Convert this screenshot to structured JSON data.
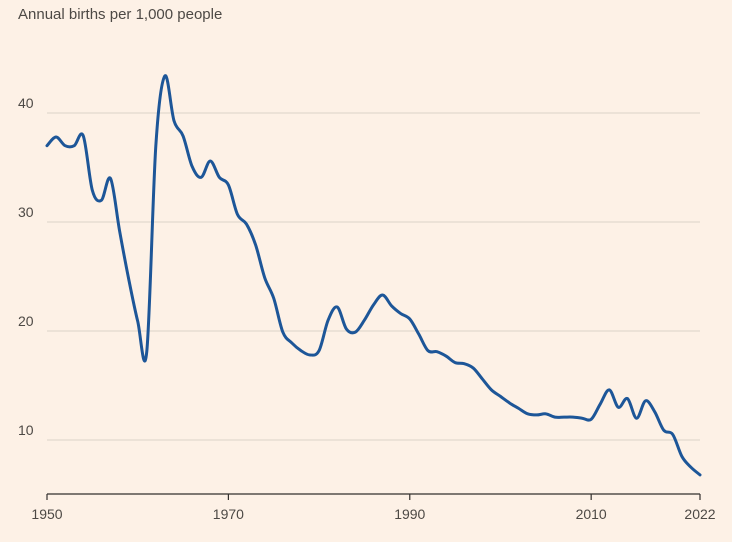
{
  "colors": {
    "background": "#fdf1e6",
    "line": "#1d5698",
    "grid": "#dcd2c8",
    "axis": "#33302e",
    "text": "#4d4945"
  },
  "chart_data": {
    "type": "line",
    "title": "",
    "subtitle": "Annual births per 1,000 people",
    "xlabel": "",
    "ylabel": "Annual births per 1,000 people",
    "xlim": [
      1950,
      2022
    ],
    "ylim": [
      5,
      45
    ],
    "grid": true,
    "yticks": [
      10,
      20,
      30,
      40
    ],
    "ytick_labels": [
      "10",
      "20",
      "30",
      "40"
    ],
    "xticks": [
      1950,
      1970,
      1990,
      2010,
      2022
    ],
    "xtick_labels": [
      "1950",
      "1970",
      "1990",
      "2010",
      "2022"
    ],
    "series": [
      {
        "name": "Annual births per 1,000 people",
        "x": [
          1950,
          1951,
          1952,
          1953,
          1954,
          1955,
          1956,
          1957,
          1958,
          1959,
          1960,
          1961,
          1962,
          1963,
          1964,
          1965,
          1966,
          1967,
          1968,
          1969,
          1970,
          1971,
          1972,
          1973,
          1974,
          1975,
          1976,
          1977,
          1978,
          1979,
          1980,
          1981,
          1982,
          1983,
          1984,
          1985,
          1986,
          1987,
          1988,
          1989,
          1990,
          1991,
          1992,
          1993,
          1994,
          1995,
          1996,
          1997,
          1998,
          1999,
          2000,
          2001,
          2002,
          2003,
          2004,
          2005,
          2006,
          2007,
          2008,
          2009,
          2010,
          2011,
          2012,
          2013,
          2014,
          2015,
          2016,
          2017,
          2018,
          2019,
          2020,
          2021,
          2022
        ],
        "values": [
          37.0,
          37.8,
          37.0,
          37.0,
          37.9,
          32.9,
          32.0,
          34.0,
          29.2,
          24.8,
          20.9,
          18.1,
          37.0,
          43.4,
          39.3,
          37.9,
          35.1,
          34.1,
          35.6,
          34.1,
          33.4,
          30.7,
          29.8,
          27.9,
          24.9,
          23.0,
          19.9,
          18.9,
          18.2,
          17.8,
          18.2,
          21.0,
          22.2,
          20.2,
          19.9,
          21.0,
          22.4,
          23.3,
          22.3,
          21.6,
          21.1,
          19.7,
          18.2,
          18.1,
          17.7,
          17.1,
          17.0,
          16.6,
          15.6,
          14.6,
          14.0,
          13.4,
          12.9,
          12.4,
          12.3,
          12.4,
          12.1,
          12.1,
          12.1,
          12.0,
          11.9,
          13.3,
          14.6,
          13.0,
          13.8,
          12.0,
          13.6,
          12.6,
          10.9,
          10.5,
          8.5,
          7.5,
          6.8
        ]
      }
    ]
  }
}
